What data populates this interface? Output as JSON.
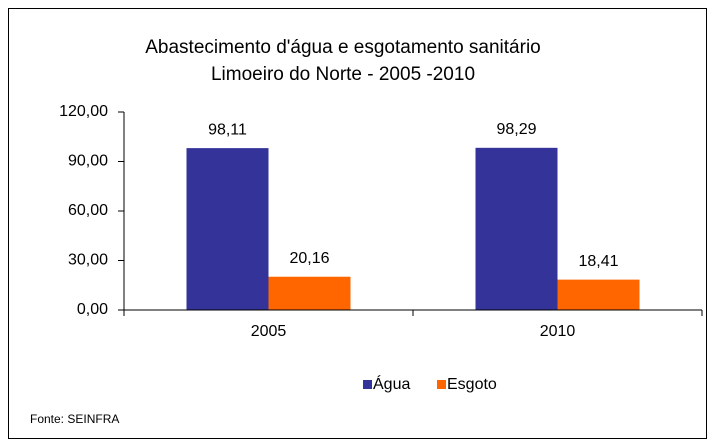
{
  "chart_data": {
    "type": "bar",
    "title": [
      "Abastecimento d'água e esgotamento sanitário",
      "Limoeiro do Norte - 2005 -2010"
    ],
    "categories": [
      "2005",
      "2010"
    ],
    "series": [
      {
        "name": "Água",
        "color": "#333399",
        "values": [
          98.11,
          98.29
        ],
        "value_labels": [
          "98,11",
          "98,29"
        ]
      },
      {
        "name": "Esgoto",
        "color": "#ff6600",
        "values": [
          20.16,
          18.41
        ],
        "value_labels": [
          "20,16",
          "18,41"
        ]
      }
    ],
    "ylim": [
      0,
      120
    ],
    "yticks": [
      {
        "value": 0,
        "label": "0,00"
      },
      {
        "value": 30,
        "label": "30,00"
      },
      {
        "value": 60,
        "label": "60,00"
      },
      {
        "value": 90,
        "label": "90,00"
      },
      {
        "value": 120,
        "label": "120,00"
      }
    ],
    "grid": false,
    "legend": "bottom",
    "source": "Fonte: SEINFRA"
  }
}
